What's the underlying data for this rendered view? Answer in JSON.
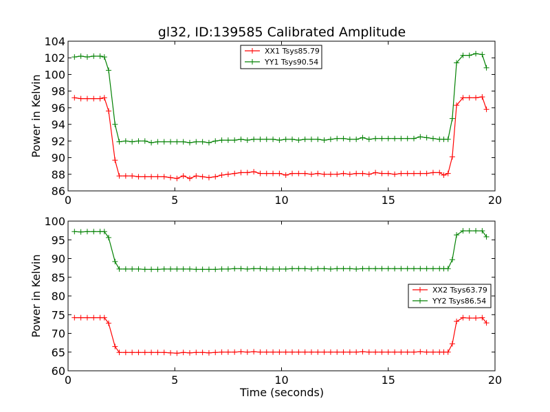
{
  "chart_data": [
    {
      "type": "line",
      "title": "gl32, ID:139585 Calibrated Amplitude",
      "xlabel": "",
      "ylabel": "Power in Kelvin",
      "xlim": [
        0,
        20
      ],
      "ylim": [
        86,
        104
      ],
      "x_ticks": [
        0,
        5,
        10,
        15,
        20
      ],
      "y_ticks": [
        86,
        88,
        90,
        92,
        94,
        96,
        98,
        100,
        102,
        104
      ],
      "legend_position": "top-center",
      "x": [
        0.3,
        0.6,
        0.9,
        1.2,
        1.5,
        1.7,
        1.9,
        2.2,
        2.4,
        2.7,
        3.0,
        3.3,
        3.6,
        3.9,
        4.2,
        4.5,
        4.8,
        5.1,
        5.4,
        5.7,
        6.0,
        6.3,
        6.6,
        6.9,
        7.2,
        7.5,
        7.8,
        8.1,
        8.4,
        8.7,
        9.0,
        9.3,
        9.6,
        9.9,
        10.2,
        10.5,
        10.8,
        11.1,
        11.4,
        11.7,
        12.0,
        12.3,
        12.6,
        12.9,
        13.2,
        13.5,
        13.8,
        14.1,
        14.4,
        14.7,
        15.0,
        15.3,
        15.6,
        15.9,
        16.2,
        16.5,
        16.8,
        17.1,
        17.4,
        17.6,
        17.8,
        18.0,
        18.2,
        18.5,
        18.8,
        19.1,
        19.4,
        19.6
      ],
      "series": [
        {
          "name": "XX1 Tsys85.79",
          "color": "#ff0000",
          "values": [
            97.2,
            97.1,
            97.1,
            97.1,
            97.1,
            97.2,
            95.6,
            89.7,
            87.8,
            87.8,
            87.8,
            87.7,
            87.7,
            87.7,
            87.7,
            87.7,
            87.6,
            87.5,
            87.8,
            87.5,
            87.8,
            87.7,
            87.6,
            87.7,
            87.9,
            88.0,
            88.1,
            88.2,
            88.2,
            88.3,
            88.1,
            88.1,
            88.1,
            88.1,
            87.9,
            88.1,
            88.1,
            88.1,
            88.0,
            88.1,
            88.0,
            88.0,
            88.0,
            88.1,
            88.0,
            88.1,
            88.1,
            88.0,
            88.2,
            88.1,
            88.1,
            88.0,
            88.1,
            88.1,
            88.1,
            88.1,
            88.1,
            88.2,
            88.2,
            87.9,
            88.1,
            90.1,
            96.3,
            97.2,
            97.2,
            97.2,
            97.3,
            95.8
          ]
        },
        {
          "name": "YY1 Tsys90.54",
          "color": "#008000",
          "values": [
            102.1,
            102.2,
            102.1,
            102.2,
            102.2,
            102.1,
            100.5,
            94.0,
            91.9,
            92.0,
            91.9,
            92.0,
            92.0,
            91.8,
            91.9,
            91.9,
            91.9,
            91.9,
            91.9,
            91.8,
            91.9,
            91.9,
            91.8,
            92.0,
            92.1,
            92.1,
            92.1,
            92.2,
            92.1,
            92.2,
            92.2,
            92.2,
            92.2,
            92.1,
            92.2,
            92.2,
            92.1,
            92.2,
            92.2,
            92.2,
            92.1,
            92.2,
            92.3,
            92.3,
            92.2,
            92.2,
            92.4,
            92.2,
            92.3,
            92.3,
            92.3,
            92.3,
            92.3,
            92.3,
            92.3,
            92.5,
            92.4,
            92.3,
            92.2,
            92.2,
            92.2,
            94.7,
            101.4,
            102.3,
            102.3,
            102.5,
            102.4,
            100.8
          ]
        }
      ]
    },
    {
      "type": "line",
      "title": "",
      "xlabel": "Time (seconds)",
      "ylabel": "Power in Kelvin",
      "xlim": [
        0,
        20
      ],
      "ylim": [
        60,
        100
      ],
      "x_ticks": [
        0,
        5,
        10,
        15,
        20
      ],
      "y_ticks": [
        60,
        65,
        70,
        75,
        80,
        85,
        90,
        95,
        100
      ],
      "legend_position": "center-right",
      "x": [
        0.3,
        0.6,
        0.9,
        1.2,
        1.5,
        1.7,
        1.9,
        2.2,
        2.4,
        2.7,
        3.0,
        3.3,
        3.6,
        3.9,
        4.2,
        4.5,
        4.8,
        5.1,
        5.4,
        5.7,
        6.0,
        6.3,
        6.6,
        6.9,
        7.2,
        7.5,
        7.8,
        8.1,
        8.4,
        8.7,
        9.0,
        9.3,
        9.6,
        9.9,
        10.2,
        10.5,
        10.8,
        11.1,
        11.4,
        11.7,
        12.0,
        12.3,
        12.6,
        12.9,
        13.2,
        13.5,
        13.8,
        14.1,
        14.4,
        14.7,
        15.0,
        15.3,
        15.6,
        15.9,
        16.2,
        16.5,
        16.8,
        17.1,
        17.4,
        17.6,
        17.8,
        18.0,
        18.2,
        18.5,
        18.8,
        19.1,
        19.4,
        19.6
      ],
      "series": [
        {
          "name": "XX2 Tsys63.79",
          "color": "#ff0000",
          "values": [
            74.2,
            74.2,
            74.2,
            74.2,
            74.2,
            74.2,
            72.7,
            66.5,
            64.9,
            64.9,
            64.9,
            64.9,
            64.9,
            64.9,
            64.9,
            64.9,
            64.8,
            64.7,
            64.9,
            64.8,
            64.9,
            64.9,
            64.8,
            64.9,
            65.0,
            65.0,
            65.0,
            65.1,
            65.0,
            65.1,
            65.0,
            65.0,
            65.0,
            65.0,
            65.0,
            65.0,
            65.0,
            65.0,
            65.0,
            65.0,
            65.0,
            65.0,
            65.0,
            65.0,
            65.0,
            65.0,
            65.1,
            65.0,
            65.0,
            65.0,
            65.0,
            65.0,
            65.0,
            65.0,
            65.0,
            65.1,
            65.0,
            65.0,
            65.0,
            65.0,
            65.0,
            67.2,
            73.2,
            74.2,
            74.1,
            74.1,
            74.2,
            72.8
          ]
        },
        {
          "name": "YY2 Tsys86.54",
          "color": "#008000",
          "values": [
            97.2,
            97.1,
            97.2,
            97.2,
            97.2,
            97.2,
            95.6,
            89.2,
            87.2,
            87.2,
            87.2,
            87.2,
            87.1,
            87.1,
            87.1,
            87.2,
            87.2,
            87.2,
            87.2,
            87.2,
            87.1,
            87.1,
            87.1,
            87.1,
            87.2,
            87.2,
            87.3,
            87.3,
            87.2,
            87.3,
            87.3,
            87.2,
            87.2,
            87.2,
            87.2,
            87.3,
            87.3,
            87.3,
            87.2,
            87.3,
            87.3,
            87.2,
            87.3,
            87.3,
            87.3,
            87.2,
            87.3,
            87.3,
            87.3,
            87.3,
            87.3,
            87.3,
            87.3,
            87.3,
            87.3,
            87.3,
            87.3,
            87.3,
            87.3,
            87.3,
            87.3,
            89.7,
            96.3,
            97.4,
            97.4,
            97.4,
            97.4,
            95.8
          ]
        }
      ]
    }
  ]
}
